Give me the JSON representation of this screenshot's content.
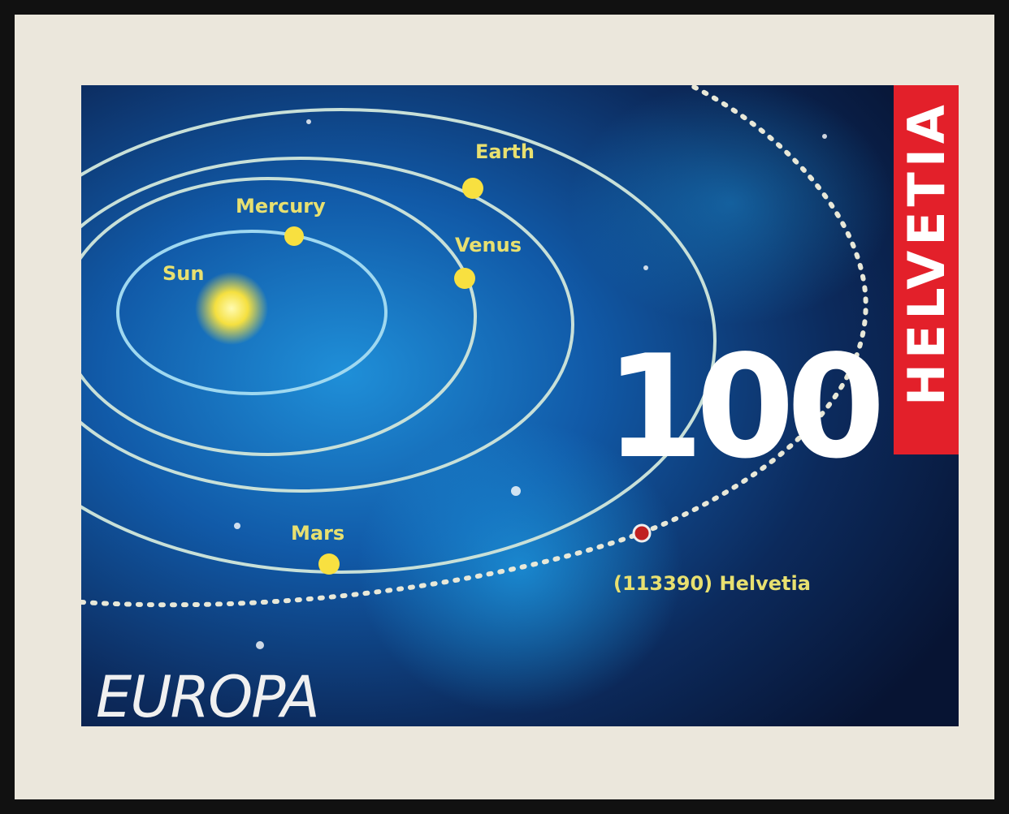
{
  "stamp": {
    "country": "HELVETIA",
    "denomination": "100",
    "series": "EUROPA",
    "labels": {
      "sun": "Sun",
      "mercury": "Mercury",
      "venus": "Venus",
      "earth": "Earth",
      "mars": "Mars",
      "asteroid": "(113390) Helvetia"
    }
  }
}
